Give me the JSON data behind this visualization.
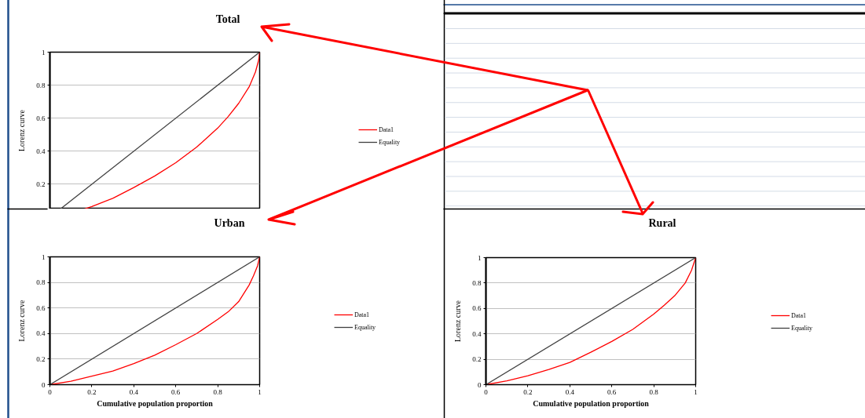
{
  "chart_data": [
    {
      "type": "line",
      "title": "Total",
      "ylabel": "Lorenz curve",
      "xlim": [
        0,
        1
      ],
      "ylim": [
        0.05,
        1
      ],
      "yticks": [
        0.2,
        0.4,
        0.6,
        0.8,
        1
      ],
      "tick_labels": "y",
      "grid": "y",
      "legend": "right",
      "series": [
        {
          "name": "Data1",
          "color": "#ff0000",
          "x": [
            0.164,
            0.2,
            0.3,
            0.4,
            0.5,
            0.6,
            0.7,
            0.8,
            0.85,
            0.9,
            0.95,
            0.98,
            0.995,
            1
          ],
          "values": [
            0.05,
            0.065,
            0.115,
            0.18,
            0.25,
            0.33,
            0.425,
            0.54,
            0.61,
            0.69,
            0.79,
            0.88,
            0.95,
            1
          ]
        },
        {
          "name": "Equality",
          "color": "#404040",
          "x": [
            0.05,
            1
          ],
          "values": [
            0.05,
            1
          ]
        }
      ]
    },
    {
      "type": "line",
      "title": "Urban",
      "xlabel": "Cumulative population proportion",
      "ylabel": "Lorenz curve",
      "xlim": [
        0,
        1
      ],
      "ylim": [
        0,
        1
      ],
      "xticks": [
        0,
        0.2,
        0.4,
        0.6,
        0.8,
        1
      ],
      "yticks": [
        0,
        0.2,
        0.4,
        0.6,
        0.8,
        1
      ],
      "grid": "y",
      "legend": "right",
      "series": [
        {
          "name": "Data1",
          "color": "#ff0000",
          "x": [
            0,
            0.1,
            0.2,
            0.3,
            0.4,
            0.5,
            0.6,
            0.7,
            0.8,
            0.85,
            0.9,
            0.95,
            0.97,
            0.99,
            1
          ],
          "values": [
            0,
            0.027,
            0.066,
            0.107,
            0.165,
            0.231,
            0.313,
            0.4,
            0.511,
            0.57,
            0.65,
            0.78,
            0.85,
            0.93,
            1
          ]
        },
        {
          "name": "Equality",
          "color": "#404040",
          "x": [
            0,
            1
          ],
          "values": [
            0,
            1
          ]
        }
      ]
    },
    {
      "type": "line",
      "title": "Rural",
      "xlabel": "Cumulative population proportion",
      "ylabel": "Lorenz curve",
      "xlim": [
        0,
        1
      ],
      "ylim": [
        0,
        1
      ],
      "xticks": [
        0,
        0.2,
        0.4,
        0.6,
        0.8,
        1
      ],
      "yticks": [
        0,
        0.2,
        0.4,
        0.6,
        0.8,
        1
      ],
      "grid": "y",
      "legend": "right",
      "series": [
        {
          "name": "Data1",
          "color": "#ff0000",
          "x": [
            0,
            0.1,
            0.2,
            0.3,
            0.4,
            0.5,
            0.6,
            0.7,
            0.8,
            0.85,
            0.9,
            0.95,
            0.98,
            1
          ],
          "values": [
            0,
            0.03,
            0.07,
            0.12,
            0.175,
            0.255,
            0.34,
            0.435,
            0.555,
            0.625,
            0.7,
            0.8,
            0.9,
            1
          ]
        },
        {
          "name": "Equality",
          "color": "#404040",
          "x": [
            0,
            1
          ],
          "values": [
            0,
            1
          ]
        }
      ]
    }
  ]
}
